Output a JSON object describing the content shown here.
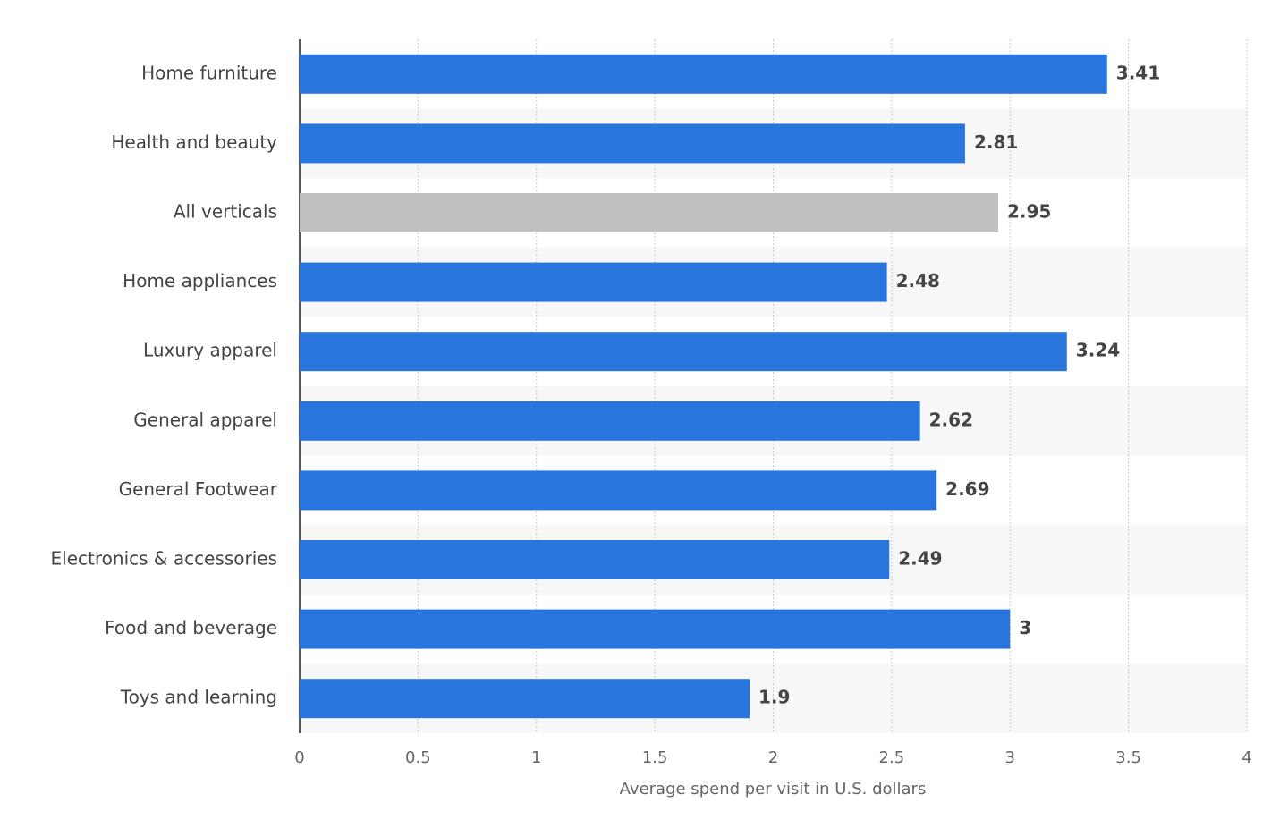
{
  "chart_data": {
    "type": "hbar",
    "x_label": "Average spend per visit in U.S. dollars",
    "categories": [
      "Home furniture",
      "Health and beauty",
      "All verticals",
      "Home appliances",
      "Luxury apparel",
      "General apparel",
      "General Footwear",
      "Electronics & accessories",
      "Food and beverage",
      "Toys and learning"
    ],
    "values": [
      3.41,
      2.81,
      2.95,
      2.48,
      3.24,
      2.62,
      2.69,
      2.49,
      3,
      1.9
    ],
    "colors": [
      "#2876dd",
      "#2876dd",
      "#c0c0c0",
      "#2876dd",
      "#2876dd",
      "#2876dd",
      "#2876dd",
      "#2876dd",
      "#2876dd",
      "#2876dd"
    ],
    "xlim": [
      0,
      4
    ],
    "xticks": [
      0,
      0.5,
      1,
      1.5,
      2,
      2.5,
      3,
      3.5,
      4
    ],
    "grid": true
  }
}
